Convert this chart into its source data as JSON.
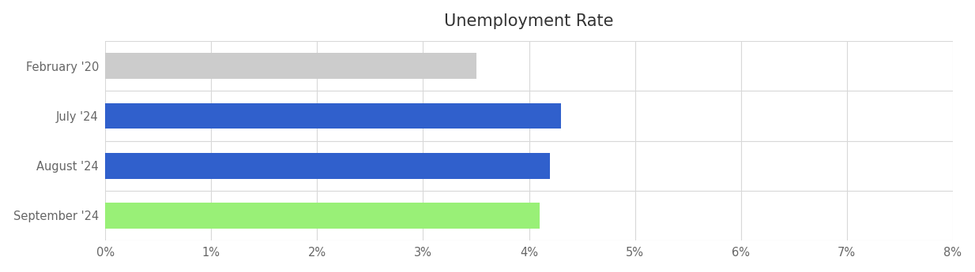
{
  "title": "Unemployment Rate",
  "categories": [
    "February '20",
    "July '24",
    "August '24",
    "September '24"
  ],
  "values": [
    3.5,
    4.3,
    4.2,
    4.1
  ],
  "bar_colors": [
    "#cccccc",
    "#3060cc",
    "#3060cc",
    "#99f077"
  ],
  "xlim": [
    0,
    0.08
  ],
  "xtick_values": [
    0,
    0.01,
    0.02,
    0.03,
    0.04,
    0.05,
    0.06,
    0.07,
    0.08
  ],
  "xtick_labels": [
    "0%",
    "1%",
    "2%",
    "3%",
    "4%",
    "5%",
    "6%",
    "7%",
    "8%"
  ],
  "title_fontsize": 15,
  "tick_fontsize": 10.5,
  "label_fontsize": 10.5,
  "background_color": "#ffffff",
  "grid_color": "#d8d8d8",
  "bar_height": 0.52
}
